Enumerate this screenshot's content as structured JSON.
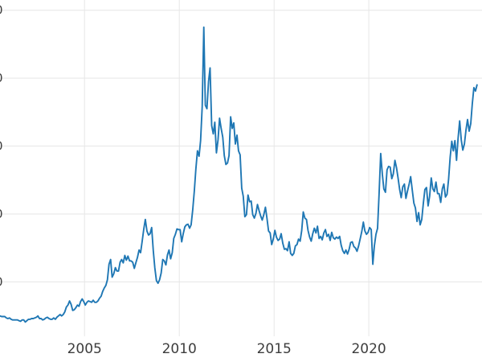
{
  "chart": {
    "background_color": "#ffffff",
    "line_color": "#1f77b4",
    "grid_color": "#e6e6e6",
    "tick_label_color": "#3d3d3d"
  },
  "chart_data": {
    "type": "line",
    "title": "",
    "xlabel": "",
    "ylabel": "",
    "legend": "none",
    "grid": true,
    "frequency": "monthly",
    "start_month": "2000-07",
    "end_month": "2025-09",
    "xlim": [
      2000.54,
      2025.97
    ],
    "ylim": [
      2.0,
      51.5
    ],
    "x_tick_values": [
      2005,
      2010,
      2015,
      2020
    ],
    "x_tick_labels": [
      "2005",
      "2010",
      "2015",
      "2020"
    ],
    "y_tick_values": [
      10,
      20,
      30,
      40,
      50
    ],
    "y_tick_labels_clipped": true,
    "values": [
      5.0,
      4.9,
      4.9,
      4.9,
      4.7,
      4.6,
      4.7,
      4.5,
      4.4,
      4.4,
      4.4,
      4.4,
      4.3,
      4.2,
      4.4,
      4.4,
      4.1,
      4.3,
      4.5,
      4.5,
      4.6,
      4.6,
      4.7,
      4.8,
      5.0,
      4.6,
      4.6,
      4.4,
      4.5,
      4.7,
      4.8,
      4.6,
      4.5,
      4.5,
      4.7,
      4.5,
      4.8,
      5.0,
      5.2,
      5.0,
      5.2,
      5.6,
      6.3,
      6.6,
      7.2,
      6.7,
      5.8,
      5.9,
      6.2,
      6.6,
      6.4,
      7.1,
      7.5,
      7.1,
      6.6,
      7.0,
      7.2,
      7.1,
      7.0,
      7.3,
      7.0,
      7.0,
      7.2,
      7.6,
      7.9,
      8.6,
      9.1,
      9.5,
      10.3,
      12.6,
      13.3,
      10.7,
      11.2,
      12.1,
      11.6,
      11.6,
      12.9,
      13.3,
      12.8,
      13.9,
      13.2,
      13.8,
      13.1,
      13.1,
      12.9,
      12.0,
      12.8,
      13.6,
      14.7,
      14.3,
      16.0,
      17.8,
      19.2,
      17.5,
      16.9,
      17.1,
      18.0,
      14.6,
      12.1,
      10.2,
      9.8,
      10.3,
      11.3,
      13.3,
      13.1,
      12.5,
      14.0,
      14.7,
      13.4,
      14.3,
      16.4,
      17.0,
      17.8,
      17.7,
      17.7,
      15.9,
      17.1,
      18.1,
      18.4,
      18.5,
      17.9,
      18.4,
      20.6,
      23.4,
      26.6,
      29.3,
      28.5,
      30.8,
      35.8,
      47.5,
      36.0,
      35.5,
      39.5,
      41.5,
      33.0,
      31.8,
      33.5,
      29.0,
      30.9,
      34.1,
      32.6,
      31.3,
      28.6,
      27.3,
      27.5,
      28.6,
      34.3,
      32.6,
      33.4,
      30.3,
      31.6,
      29.3,
      28.7,
      23.8,
      22.6,
      19.6,
      19.9,
      22.8,
      21.8,
      21.9,
      19.9,
      19.4,
      20.1,
      21.4,
      20.5,
      19.7,
      19.1,
      19.9,
      21.0,
      19.4,
      17.5,
      17.2,
      15.5,
      16.3,
      17.6,
      16.6,
      16.1,
      16.3,
      17.1,
      15.7,
      14.8,
      14.9,
      14.6,
      15.9,
      14.2,
      13.9,
      14.2,
      15.3,
      15.5,
      16.3,
      16.0,
      17.6,
      20.3,
      19.4,
      19.2,
      17.6,
      16.6,
      16.0,
      17.1,
      17.9,
      17.2,
      18.2,
      16.4,
      16.7,
      16.2,
      17.2,
      17.7,
      16.7,
      17.0,
      16.1,
      17.3,
      16.5,
      16.3,
      16.6,
      16.4,
      16.7,
      15.4,
      14.6,
      14.2,
      14.7,
      14.1,
      14.8,
      15.8,
      15.9,
      15.2,
      15.0,
      14.5,
      15.3,
      16.3,
      17.4,
      18.8,
      17.5,
      17.0,
      17.3,
      18.0,
      17.7,
      12.6,
      15.3,
      17.0,
      17.9,
      23.0,
      28.9,
      25.9,
      23.7,
      23.2,
      26.5,
      27.0,
      26.9,
      25.2,
      25.9,
      27.9,
      26.8,
      25.3,
      23.6,
      22.4,
      24.0,
      24.4,
      22.3,
      23.4,
      24.4,
      25.5,
      23.5,
      21.6,
      20.9,
      18.9,
      20.2,
      18.4,
      19.2,
      21.6,
      23.6,
      23.9,
      21.2,
      22.6,
      25.3,
      23.7,
      23.3,
      24.7,
      23.0,
      23.0,
      21.7,
      23.7,
      24.4,
      22.5,
      22.9,
      25.1,
      28.4,
      30.7,
      29.3,
      30.8,
      27.9,
      31.1,
      33.7,
      30.9,
      29.4,
      30.3,
      32.4,
      33.9,
      32.2,
      33.3,
      36.2,
      38.6,
      38.1,
      39.0
    ]
  }
}
